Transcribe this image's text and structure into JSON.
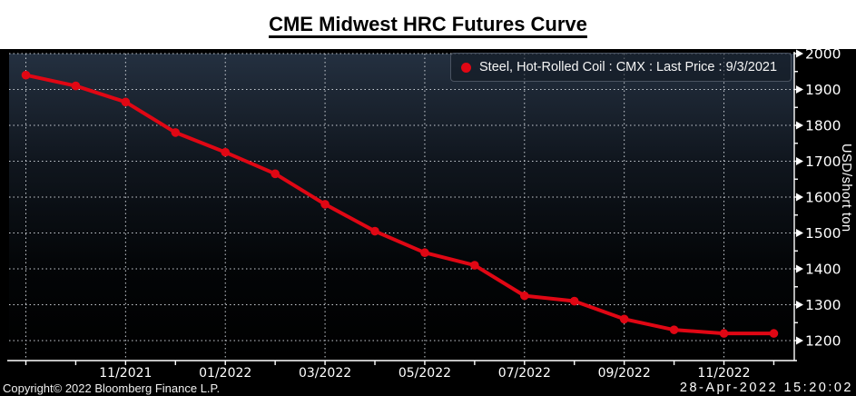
{
  "title": "CME Midwest HRC Futures Curve",
  "legend": {
    "label": "Steel, Hot-Rolled Coil : CMX : Last Price : 9/3/2021",
    "marker": "red-dot",
    "marker_color": "#e00714"
  },
  "footer": {
    "copyright": "Copyright© 2022 Bloomberg Finance L.P.",
    "timestamp": "28-Apr-2022 15:20:02"
  },
  "colors": {
    "line": "#e00714",
    "panel_background": "#000000",
    "plot_gradient_top": "#243040",
    "grid": "#c9ced4",
    "axis_text": "#ffffff",
    "title_text": "#000000"
  },
  "chart_data": {
    "type": "line",
    "title": "CME Midwest HRC Futures Curve",
    "x": [
      "09/2021",
      "10/2021",
      "11/2021",
      "12/2021",
      "01/2022",
      "02/2022",
      "03/2022",
      "04/2022",
      "05/2022",
      "06/2022",
      "07/2022",
      "08/2022",
      "09/2022",
      "10/2022",
      "11/2022",
      "12/2022"
    ],
    "series": [
      {
        "name": "Steel, Hot-Rolled Coil : CMX : Last Price : 9/3/2021",
        "color": "#e00714",
        "values": [
          1940,
          1910,
          1865,
          1780,
          1725,
          1665,
          1580,
          1505,
          1445,
          1410,
          1325,
          1310,
          1260,
          1230,
          1220,
          1220
        ]
      }
    ],
    "x_axis": {
      "labels": [
        "11/2021",
        "01/2022",
        "03/2022",
        "05/2022",
        "07/2022",
        "09/2022",
        "11/2022"
      ]
    },
    "y_axis": {
      "title": "USD/short ton",
      "major_ticks": [
        1200,
        1300,
        1400,
        1500,
        1600,
        1700,
        1800,
        1900,
        2000
      ],
      "minor_step": 50,
      "ylim": [
        1140,
        2005
      ]
    },
    "grid": "dotted",
    "legend_position": "top-right",
    "marker_style": "filled-circle"
  }
}
